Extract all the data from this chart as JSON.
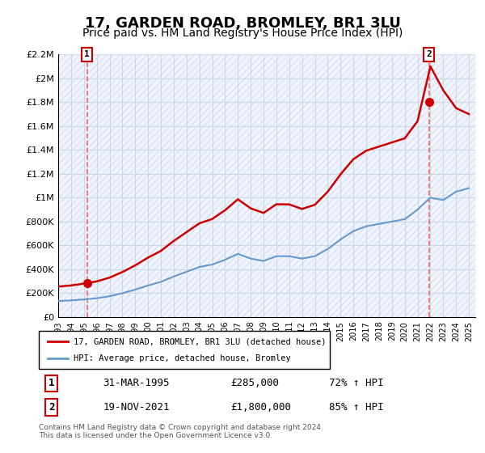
{
  "title": "17, GARDEN ROAD, BROMLEY, BR1 3LU",
  "subtitle": "Price paid vs. HM Land Registry's House Price Index (HPI)",
  "title_fontsize": 13,
  "subtitle_fontsize": 10,
  "ylim": [
    0,
    2200000
  ],
  "xlim_start": 1993.0,
  "xlim_end": 2025.5,
  "yticks": [
    0,
    200000,
    400000,
    600000,
    800000,
    1000000,
    1200000,
    1400000,
    1600000,
    1800000,
    2000000,
    2200000
  ],
  "ytick_labels": [
    "£0",
    "£200K",
    "£400K",
    "£600K",
    "£800K",
    "£1M",
    "£1.2M",
    "£1.4M",
    "£1.6M",
    "£1.8M",
    "£2M",
    "£2.2M"
  ],
  "xticks": [
    1993,
    1994,
    1995,
    1996,
    1997,
    1998,
    1999,
    2000,
    2001,
    2002,
    2003,
    2004,
    2005,
    2006,
    2007,
    2008,
    2009,
    2010,
    2011,
    2012,
    2013,
    2014,
    2015,
    2016,
    2017,
    2018,
    2019,
    2020,
    2021,
    2022,
    2023,
    2024,
    2025
  ],
  "background_color": "#f0f4ff",
  "hatch_color": "#c8d0e0",
  "grid_color": "#aabbcc",
  "sale1_x": 1995.25,
  "sale1_y": 285000,
  "sale2_x": 2021.89,
  "sale2_y": 1800000,
  "legend_line1": "17, GARDEN ROAD, BROMLEY, BR1 3LU (detached house)",
  "legend_line2": "HPI: Average price, detached house, Bromley",
  "table_row1": [
    "1",
    "31-MAR-1995",
    "£285,000",
    "72% ↑ HPI"
  ],
  "table_row2": [
    "2",
    "19-NOV-2021",
    "£1,800,000",
    "85% ↑ HPI"
  ],
  "footer": "Contains HM Land Registry data © Crown copyright and database right 2024.\nThis data is licensed under the Open Government Licence v3.0.",
  "red_line_color": "#cc0000",
  "blue_line_color": "#6699cc",
  "marker_color": "#cc0000",
  "dashed_line_color": "#ff4444"
}
